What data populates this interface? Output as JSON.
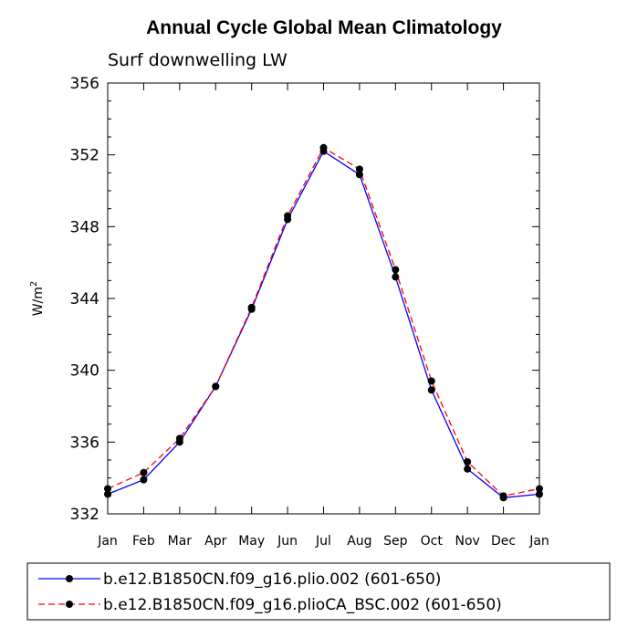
{
  "chart_data": {
    "type": "line",
    "title": "Annual Cycle Global Mean Climatology",
    "subtitle": "Surf downwelling LW",
    "ylabel": "W/m",
    "ylabel_superscript": "2",
    "xlabel": "",
    "categories": [
      "Jan",
      "Feb",
      "Mar",
      "Apr",
      "May",
      "Jun",
      "Jul",
      "Aug",
      "Sep",
      "Oct",
      "Nov",
      "Dec",
      "Jan"
    ],
    "ylim": [
      332,
      356
    ],
    "yticks": [
      332,
      336,
      340,
      344,
      348,
      352,
      356
    ],
    "ytick_labels": [
      "332",
      "336",
      "340",
      "344",
      "348",
      "352",
      "356"
    ],
    "series": [
      {
        "name": "b.e12.B1850CN.f09_g16.plio.002 (601-650)",
        "color": "#0000ff",
        "dash": "solid",
        "values": [
          333.1,
          333.9,
          336.0,
          339.1,
          343.4,
          348.4,
          352.2,
          350.9,
          345.2,
          338.9,
          334.5,
          332.9,
          333.1
        ]
      },
      {
        "name": "b.e12.B1850CN.f09_g16.plioCA_BSC.002 (601-650)",
        "color": "#ff0000",
        "dash": "dashed",
        "values": [
          333.4,
          334.3,
          336.2,
          339.1,
          343.5,
          348.6,
          352.4,
          351.2,
          345.6,
          339.4,
          334.9,
          333.0,
          333.4
        ]
      }
    ],
    "legend_location": "bottom"
  }
}
